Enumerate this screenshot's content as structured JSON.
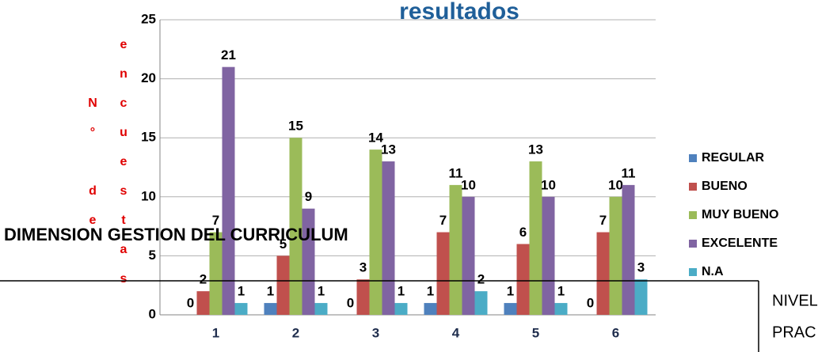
{
  "chart_data": {
    "type": "bar",
    "title": "resultados",
    "y_label": "N° de encuestas",
    "categories": [
      "1",
      "2",
      "3",
      "4",
      "5",
      "6"
    ],
    "series": [
      {
        "name": "REGULAR",
        "color": "#4f81bd",
        "values": [
          0,
          1,
          0,
          1,
          1,
          0
        ]
      },
      {
        "name": "BUENO",
        "color": "#c0504d",
        "values": [
          2,
          5,
          3,
          7,
          6,
          7
        ]
      },
      {
        "name": "MUY BUENO",
        "color": "#9bbb59",
        "values": [
          7,
          15,
          14,
          11,
          13,
          10
        ]
      },
      {
        "name": "EXCELENTE",
        "color": "#8064a2",
        "values": [
          21,
          9,
          13,
          10,
          10,
          11
        ]
      },
      {
        "name": "N.A",
        "color": "#4bacc6",
        "values": [
          1,
          1,
          1,
          2,
          1,
          3
        ]
      }
    ],
    "ylim": [
      0,
      25
    ],
    "yticks": [
      0,
      5,
      10,
      15,
      20,
      25
    ],
    "grid": true,
    "legend": "right"
  },
  "overlay": {
    "heading": "DIMENSION GESTION DEL CURRICULUM",
    "box_lines": [
      "NIVEL",
      "PRAC"
    ]
  }
}
